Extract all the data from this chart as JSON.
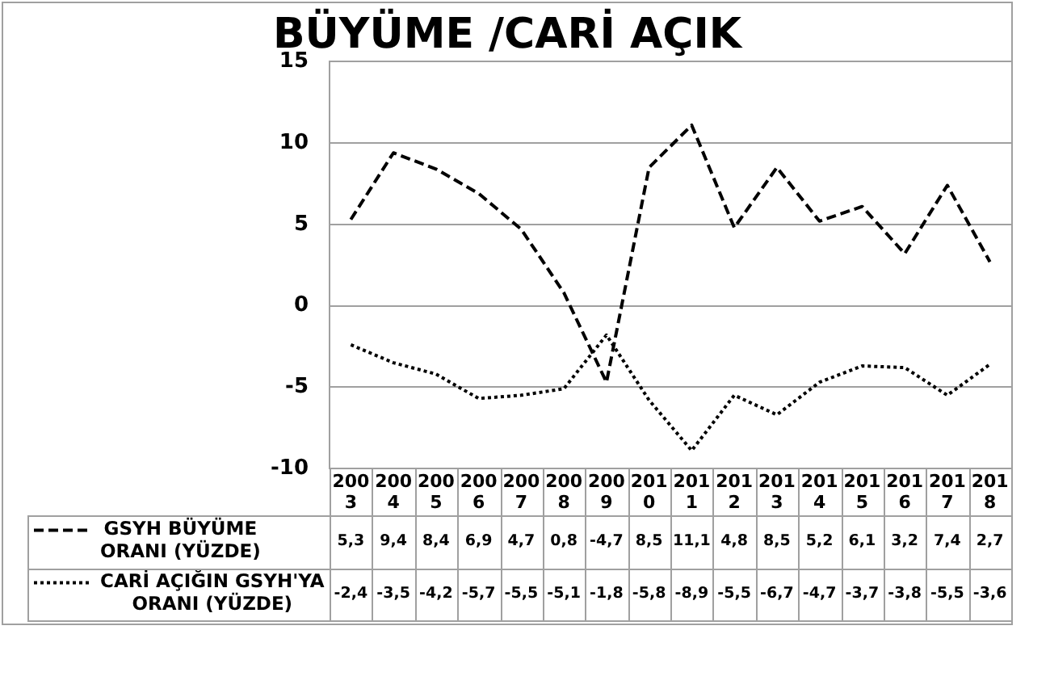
{
  "chart_data": {
    "type": "line",
    "title": "BÜYÜME /CARİ AÇIK",
    "categories": [
      "2003",
      "2004",
      "2005",
      "2006",
      "2007",
      "2008",
      "2009",
      "2010",
      "2011",
      "2012",
      "2013",
      "2014",
      "2015",
      "2016",
      "2017",
      "2018"
    ],
    "series": [
      {
        "name": "GSYH BÜYÜME ORANI (YÜZDE)",
        "color": "#000000",
        "line_style": "dashed",
        "values": [
          5.3,
          9.4,
          8.4,
          6.9,
          4.7,
          0.8,
          -4.7,
          8.5,
          11.1,
          4.8,
          8.5,
          5.2,
          6.1,
          3.2,
          7.4,
          2.7
        ],
        "value_labels": [
          "5,3",
          "9,4",
          "8,4",
          "6,9",
          "4,7",
          "0,8",
          "-4,7",
          "8,5",
          "11,1",
          "4,8",
          "8,5",
          "5,2",
          "6,1",
          "3,2",
          "7,4",
          "2,7"
        ]
      },
      {
        "name": "CARİ AÇIĞIN GSYH'YA ORANI (YÜZDE)",
        "color": "#000000",
        "line_style": "dotted",
        "values": [
          -2.4,
          -3.5,
          -4.2,
          -5.7,
          -5.5,
          -5.1,
          -1.8,
          -5.8,
          -8.9,
          -5.5,
          -6.7,
          -4.7,
          -3.7,
          -3.8,
          -5.5,
          -3.6
        ],
        "value_labels": [
          "-2,4",
          "-3,5",
          "-4,2",
          "-5,7",
          "-5,5",
          "-5,1",
          "-1,8",
          "-5,8",
          "-8,9",
          "-5,5",
          "-6,7",
          "-4,7",
          "-3,7",
          "-3,8",
          "-5,5",
          "-3,6"
        ]
      }
    ],
    "ylim": [
      -10,
      15
    ],
    "yticks": [
      -10,
      -5,
      0,
      5,
      10,
      15
    ],
    "grid": "y",
    "legend": "bottom left",
    "marker": "none"
  }
}
